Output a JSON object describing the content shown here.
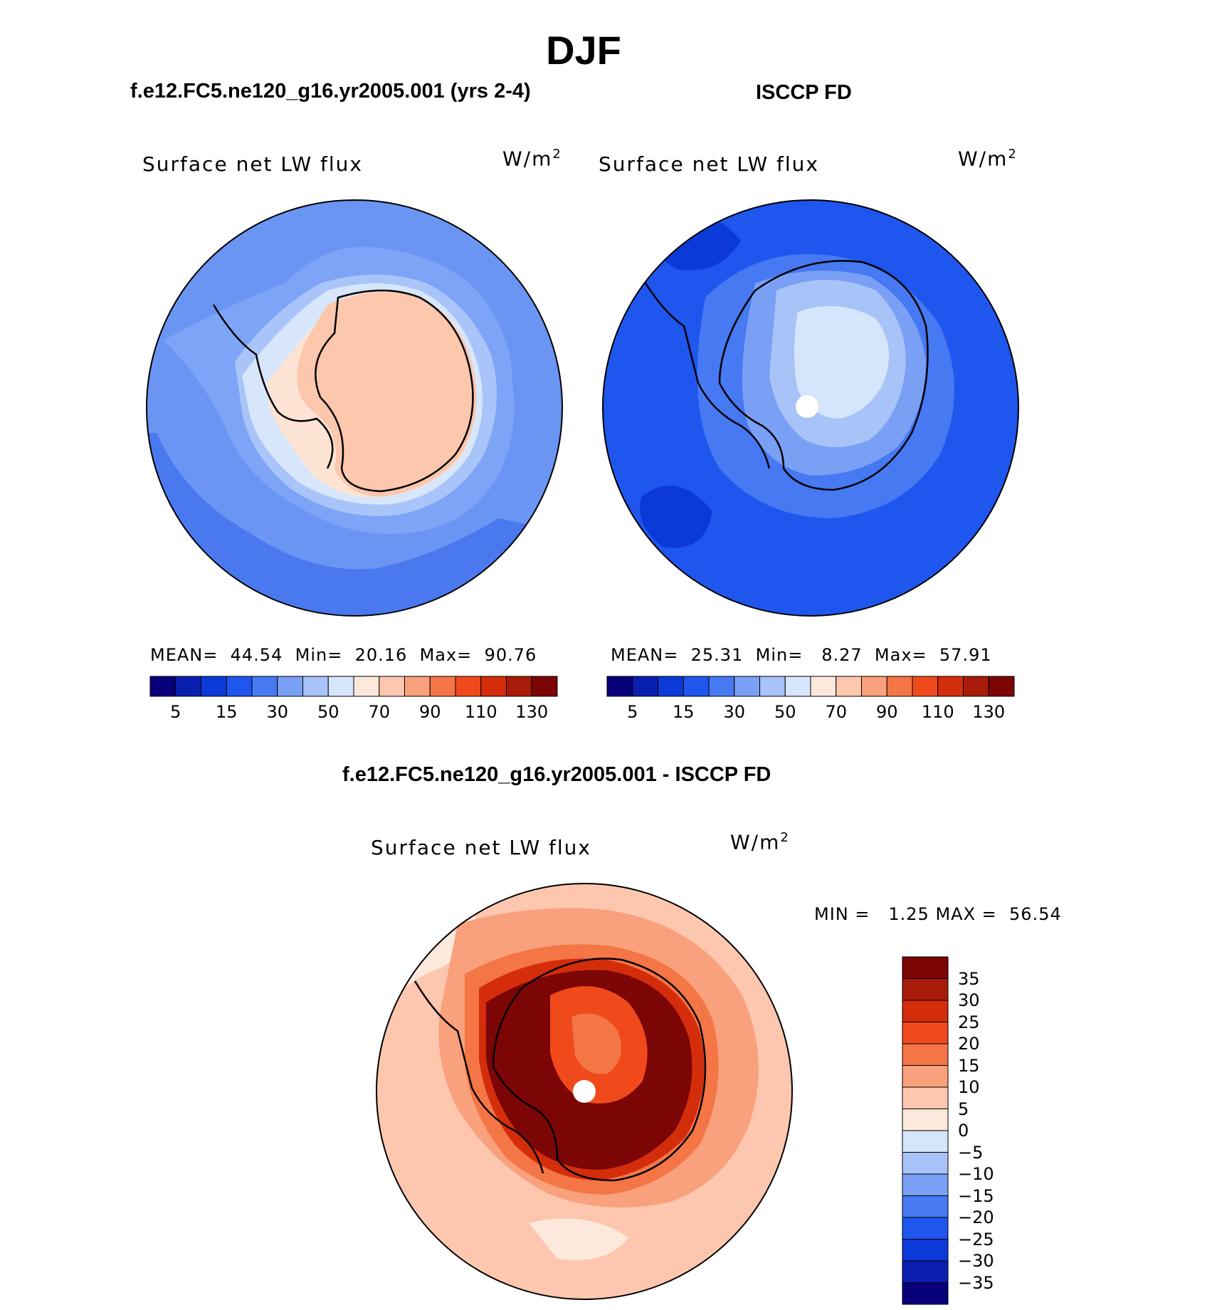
{
  "figure": {
    "title": "DJF"
  },
  "panels": [
    {
      "title": "f.e12.FC5.ne120_g16.yr2005.001 (yrs 2-4)",
      "variable": "Surface net LW flux",
      "units_base": "W/m",
      "units_sup": "2",
      "stats": {
        "mean_label": "MEAN=",
        "mean": "44.54",
        "min_label": "Min=",
        "min": "20.16",
        "max_label": "Max=",
        "max": "90.76"
      }
    },
    {
      "title": "ISCCP FD",
      "variable": "Surface net LW flux",
      "units_base": "W/m",
      "units_sup": "2",
      "stats": {
        "mean_label": "MEAN=",
        "mean": "25.31",
        "min_label": "Min=",
        "min": "8.27",
        "max_label": "Max=",
        "max": "57.91"
      }
    },
    {
      "title": "f.e12.FC5.ne120_g16.yr2005.001 - ISCCP FD",
      "variable": "Surface net LW flux",
      "units_base": "W/m",
      "units_sup": "2",
      "stats": {
        "min_label": "MIN =",
        "min": "1.25",
        "max_label": "MAX =",
        "max": "56.54"
      }
    }
  ],
  "colorbar_abs": {
    "colors": [
      "#08007a",
      "#0a1fb0",
      "#0c3ad8",
      "#1e56ee",
      "#4679f2",
      "#7aa0f5",
      "#a8c3f8",
      "#d5e5fb",
      "#fde9dc",
      "#fcc7ae",
      "#f9a07c",
      "#f47546",
      "#f04a1c",
      "#d42d0c",
      "#a81b08",
      "#7c0505"
    ],
    "ticks": [
      "5",
      "15",
      "30",
      "50",
      "70",
      "90",
      "110",
      "130"
    ]
  },
  "colorbar_diff": {
    "colors_top_to_bottom": [
      "#7c0505",
      "#a81b08",
      "#d42d0c",
      "#f04a1c",
      "#f47546",
      "#f9a07c",
      "#fcc7ae",
      "#fde9dc",
      "#d5e5fb",
      "#a8c3f8",
      "#7aa0f5",
      "#4679f2",
      "#1e56ee",
      "#0c3ad8",
      "#0a1fb0",
      "#08007a"
    ],
    "ticks": [
      "35",
      "30",
      "25",
      "20",
      "15",
      "10",
      "5",
      "0",
      "−10",
      "−15",
      "−20",
      "−25",
      "−30",
      "−35"
    ],
    "ticks_full": [
      "35",
      "30",
      "25",
      "20",
      "15",
      "10",
      "5",
      "0",
      "−5",
      "−10",
      "−15",
      "−20",
      "−25",
      "−30",
      "−35"
    ]
  }
}
